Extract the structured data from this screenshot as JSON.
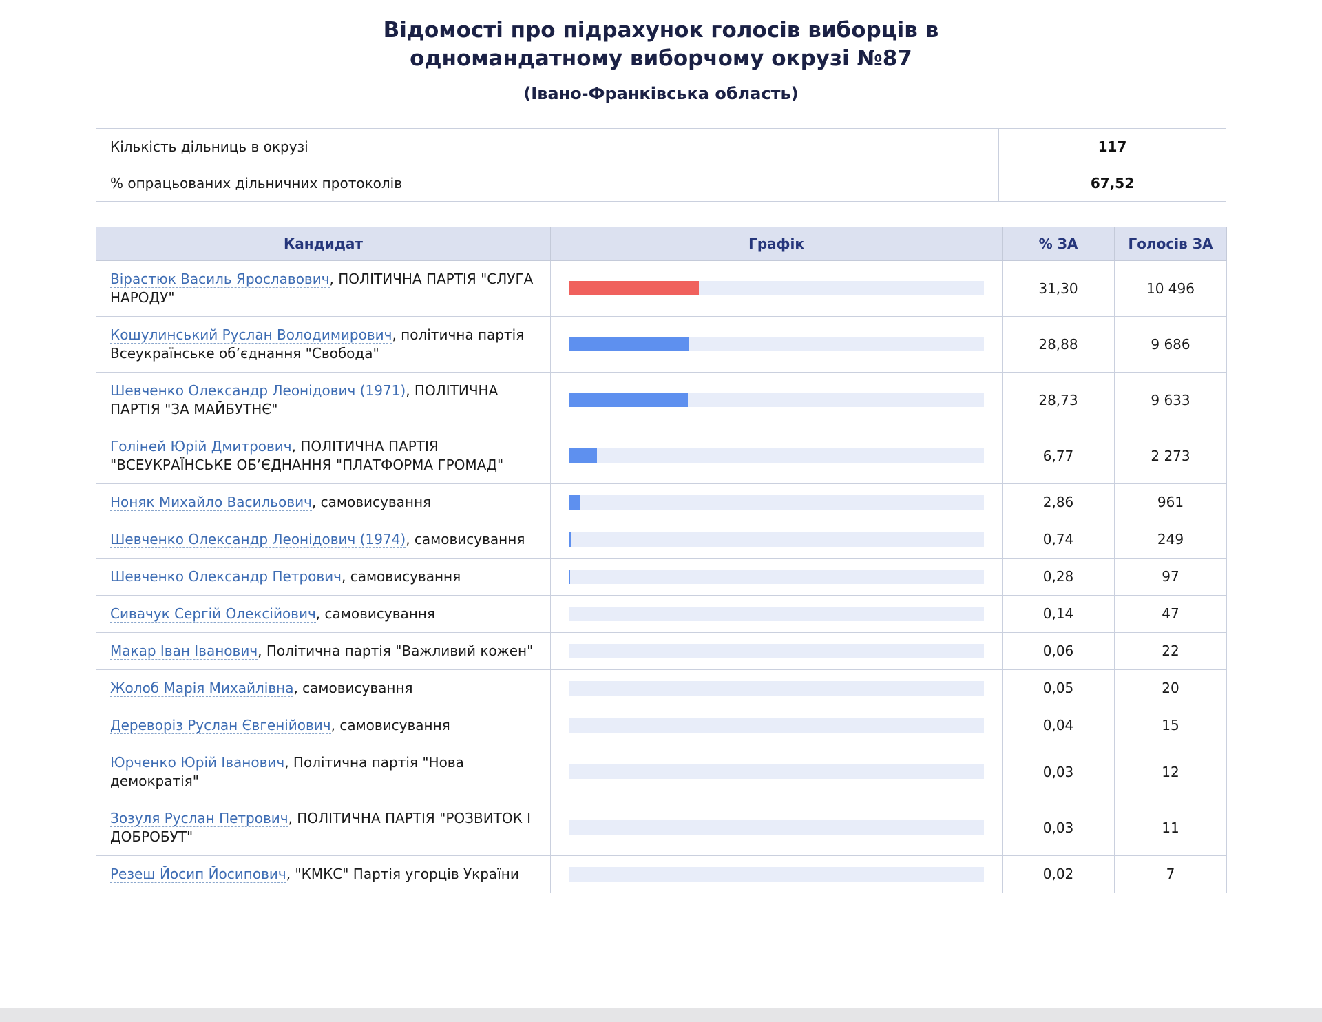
{
  "header": {
    "title": "Відомості про підрахунок голосів виборців в одномандатному виборчому окрузі №87",
    "subtitle": "(Івано-Франківська область)"
  },
  "summary": {
    "rows": [
      {
        "label": "Кількість дільниць в окрузі",
        "value": "117"
      },
      {
        "label": "% опрацьованих дільничних протоколів",
        "value": "67,52"
      }
    ]
  },
  "results_table": {
    "columns": [
      "Кандидат",
      "Графік",
      "% ЗА",
      "Голосів ЗА"
    ],
    "rows": [
      {
        "name": "Вірастюк Василь Ярославович",
        "party": "ПОЛІТИЧНА ПАРТІЯ \"СЛУГА НАРОДУ\"",
        "percent": 31.3,
        "percent_label": "31,30",
        "votes_label": "10 496",
        "bar_color": "#f0615d"
      },
      {
        "name": "Кошулинський Руслан Володимирович",
        "party": "політична партія Всеукраїнське об’єднання \"Свобода\"",
        "percent": 28.88,
        "percent_label": "28,88",
        "votes_label": "9 686",
        "bar_color": "#5e90ef"
      },
      {
        "name": "Шевченко Олександр Леонідович (1971)",
        "party": "ПОЛІТИЧНА ПАРТІЯ \"ЗА МАЙБУТНЄ\"",
        "percent": 28.73,
        "percent_label": "28,73",
        "votes_label": "9 633",
        "bar_color": "#5e90ef"
      },
      {
        "name": "Голіней Юрій Дмитрович",
        "party": "ПОЛІТИЧНА ПАРТІЯ \"ВСЕУКРАЇНСЬКЕ ОБ’ЄДНАННЯ \"ПЛАТФОРМА ГРОМАД\"",
        "percent": 6.77,
        "percent_label": "6,77",
        "votes_label": "2 273",
        "bar_color": "#5e90ef"
      },
      {
        "name": "Ноняк Михайло Васильович",
        "party": "самовисування",
        "percent": 2.86,
        "percent_label": "2,86",
        "votes_label": "961",
        "bar_color": "#5e90ef"
      },
      {
        "name": "Шевченко Олександр Леонідович (1974)",
        "party": "самовисування",
        "percent": 0.74,
        "percent_label": "0,74",
        "votes_label": "249",
        "bar_color": "#5e90ef"
      },
      {
        "name": "Шевченко Олександр Петрович",
        "party": "самовисування",
        "percent": 0.28,
        "percent_label": "0,28",
        "votes_label": "97",
        "bar_color": "#5e90ef"
      },
      {
        "name": "Сивачук Сергій Олексійович",
        "party": "самовисування",
        "percent": 0.14,
        "percent_label": "0,14",
        "votes_label": "47",
        "bar_color": "#5e90ef"
      },
      {
        "name": "Макар Іван Іванович",
        "party": "Політична партія \"Важливий кожен\"",
        "percent": 0.06,
        "percent_label": "0,06",
        "votes_label": "22",
        "bar_color": "#5e90ef"
      },
      {
        "name": "Жолоб Марія Михайлівна",
        "party": "самовисування",
        "percent": 0.05,
        "percent_label": "0,05",
        "votes_label": "20",
        "bar_color": "#5e90ef"
      },
      {
        "name": "Дереворіз Руслан Євгенійович",
        "party": "самовисування",
        "percent": 0.04,
        "percent_label": "0,04",
        "votes_label": "15",
        "bar_color": "#5e90ef"
      },
      {
        "name": "Юрченко Юрій Іванович",
        "party": "Політична партія \"Нова демократія\"",
        "percent": 0.03,
        "percent_label": "0,03",
        "votes_label": "12",
        "bar_color": "#5e90ef"
      },
      {
        "name": "Зозуля Руслан Петрович",
        "party": "ПОЛІТИЧНА ПАРТІЯ \"РОЗВИТОК І ДОБРОБУТ\"",
        "percent": 0.03,
        "percent_label": "0,03",
        "votes_label": "11",
        "bar_color": "#5e90ef"
      },
      {
        "name": "Резеш Йосип Йосипович",
        "party": "\"КМКС\" Партія угорців України",
        "percent": 0.02,
        "percent_label": "0,02",
        "votes_label": "7",
        "bar_color": "#5e90ef"
      }
    ]
  },
  "colors": {
    "bar_leader": "#f0615d",
    "bar_default": "#5e90ef",
    "bar_track": "#e8edf9",
    "header_bg": "#dce1f0",
    "header_text": "#26367b",
    "link": "#3d6cb3"
  },
  "chart_data": {
    "type": "bar",
    "orientation": "horizontal",
    "title": "Відомості про підрахунок голосів виборців в одномандатному виборчому окрузі №87 (Івано-Франківська область)",
    "xlabel": "% ЗА",
    "ylabel": "Кандидат",
    "xlim": [
      0,
      100
    ],
    "categories": [
      "Вірастюк Василь Ярославович",
      "Кошулинський Руслан Володимирович",
      "Шевченко Олександр Леонідович (1971)",
      "Голіней Юрій Дмитрович",
      "Ноняк Михайло Васильович",
      "Шевченко Олександр Леонідович (1974)",
      "Шевченко Олександр Петрович",
      "Сивачук Сергій Олексійович",
      "Макар Іван Іванович",
      "Жолоб Марія Михайлівна",
      "Дереворіз Руслан Євгенійович",
      "Юрченко Юрій Іванович",
      "Зозуля Руслан Петрович",
      "Резеш Йосип Йосипович"
    ],
    "series": [
      {
        "name": "% ЗА",
        "values": [
          31.3,
          28.88,
          28.73,
          6.77,
          2.86,
          0.74,
          0.28,
          0.14,
          0.06,
          0.05,
          0.04,
          0.03,
          0.03,
          0.02
        ]
      },
      {
        "name": "Голосів ЗА",
        "values": [
          10496,
          9686,
          9633,
          2273,
          961,
          249,
          97,
          47,
          22,
          20,
          15,
          12,
          11,
          7
        ]
      }
    ]
  }
}
